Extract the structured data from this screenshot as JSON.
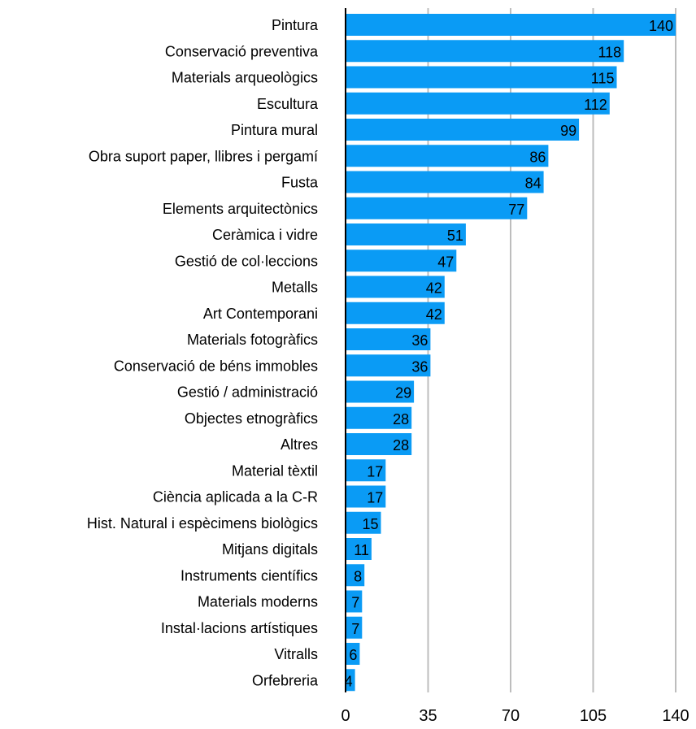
{
  "chart_data": {
    "type": "bar",
    "orientation": "horizontal",
    "categories": [
      "Pintura",
      "Conservació preventiva",
      "Materials arqueològics",
      "Escultura",
      "Pintura mural",
      "Obra suport paper, llibres i pergamí",
      "Fusta",
      "Elements arquitectònics",
      "Ceràmica i vidre",
      "Gestió de col·leccions",
      "Metalls",
      "Art Contemporani",
      "Materials fotogràfics",
      "Conservació de béns immobles",
      "Gestió / administració",
      "Objectes etnogràfics",
      "Altres",
      "Material tèxtil",
      "Ciència aplicada a la C-R",
      "Hist. Natural i espècimens biològics",
      "Mitjans digitals",
      "Instruments científics",
      "Materials moderns",
      "Instal·lacions artístiques",
      "Vitralls",
      "Orfebreria"
    ],
    "values": [
      140,
      118,
      115,
      112,
      99,
      86,
      84,
      77,
      51,
      47,
      42,
      42,
      36,
      36,
      29,
      28,
      28,
      17,
      17,
      15,
      11,
      8,
      7,
      7,
      6,
      4
    ],
    "value_labels": [
      "140",
      "118",
      "115",
      "112",
      "99",
      "86",
      "84",
      "77",
      "51",
      "47",
      "42",
      "42",
      "36",
      "36",
      "29",
      "28",
      "28",
      "17",
      "17",
      "15",
      "11",
      "8",
      "7",
      "7",
      "6",
      "4"
    ],
    "xlim": [
      0,
      140
    ],
    "x_ticks": [
      0,
      35,
      70,
      105,
      140
    ],
    "x_tick_labels": [
      "0",
      "35",
      "70",
      "105",
      "140"
    ],
    "grid": "vertical",
    "bar_color": "#0A9BF5",
    "grid_color": "#BDBDBD",
    "axis_color": "#000000",
    "title": "",
    "xlabel": "",
    "ylabel": ""
  }
}
